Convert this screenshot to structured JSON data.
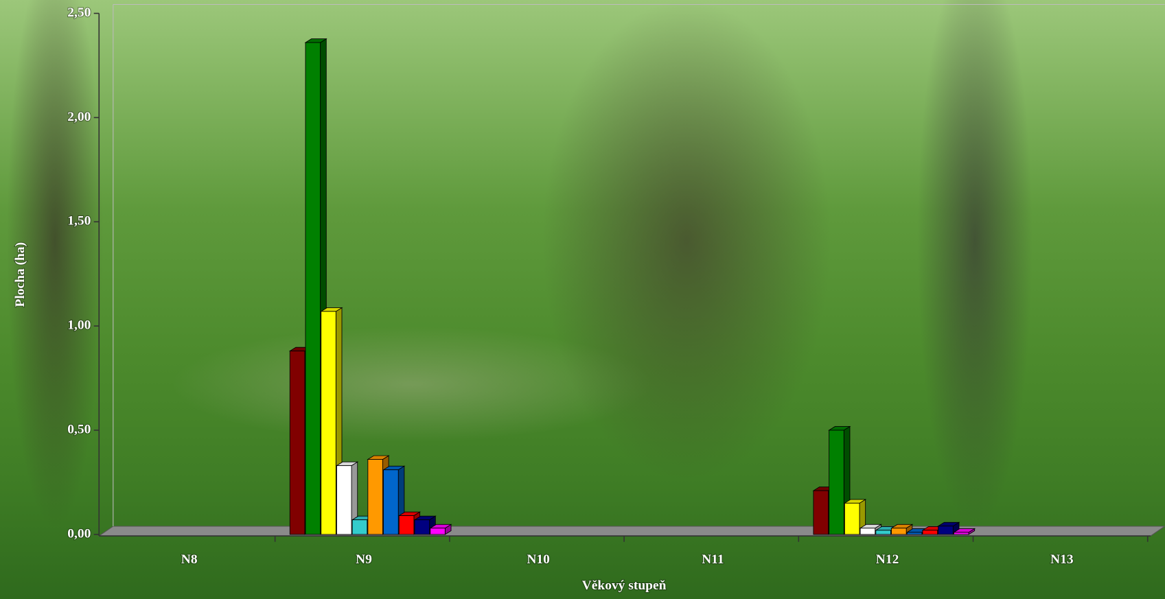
{
  "chart_data": {
    "type": "bar3d",
    "y_label": "Plocha (ha)",
    "x_label": "Věkový stupeň",
    "categories": [
      "N8",
      "N9",
      "N10",
      "N11",
      "N12",
      "N13"
    ],
    "series": [
      {
        "color": "#800000",
        "values": [
          0,
          0.88,
          0,
          0,
          0.21,
          0
        ]
      },
      {
        "color": "#008000",
        "values": [
          0,
          2.36,
          0,
          0,
          0.5,
          0
        ]
      },
      {
        "color": "#ffff00",
        "values": [
          0,
          1.07,
          0,
          0,
          0.15,
          0
        ]
      },
      {
        "color": "#ffffff",
        "values": [
          0,
          0.33,
          0,
          0,
          0.03,
          0
        ]
      },
      {
        "color": "#33cccc",
        "values": [
          0,
          0.07,
          0,
          0,
          0.02,
          0
        ]
      },
      {
        "color": "#ff9900",
        "values": [
          0,
          0.36,
          0,
          0,
          0.03,
          0
        ]
      },
      {
        "color": "#0066cc",
        "values": [
          0,
          0.31,
          0,
          0,
          0.01,
          0
        ]
      },
      {
        "color": "#ff0000",
        "values": [
          0,
          0.09,
          0,
          0,
          0.02,
          0
        ]
      },
      {
        "color": "#000080",
        "values": [
          0,
          0.07,
          0,
          0,
          0.04,
          0
        ]
      },
      {
        "color": "#ff00ff",
        "values": [
          0,
          0.03,
          0,
          0,
          0.01,
          0
        ]
      }
    ],
    "ylim": [
      0,
      2.5
    ],
    "yticks": [
      {
        "value": 0,
        "label": "0,00"
      },
      {
        "value": 0.5,
        "label": "0,50"
      },
      {
        "value": 1,
        "label": "1,00"
      },
      {
        "value": 1.5,
        "label": "1,50"
      },
      {
        "value": 2,
        "label": "2,00"
      },
      {
        "value": 2.5,
        "label": "2,50"
      }
    ]
  }
}
